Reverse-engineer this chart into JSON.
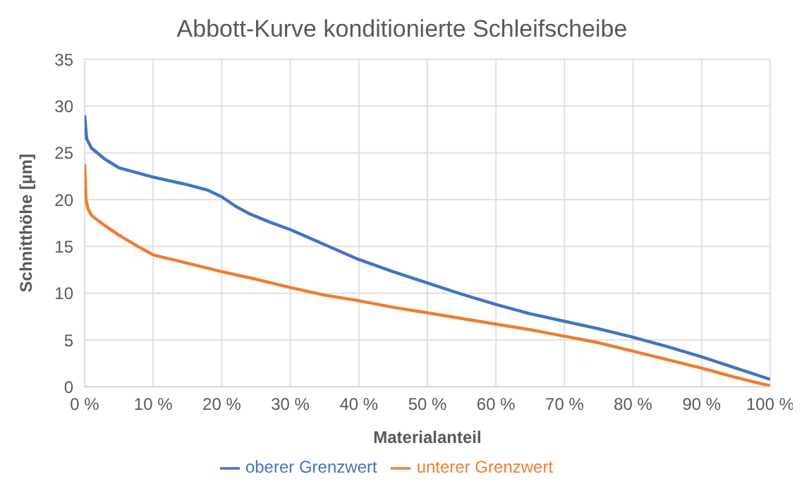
{
  "chart_data": {
    "type": "line",
    "title": "Abbott-Kurve konditionierte Schleifscheibe",
    "xlabel": "Materialanteil",
    "ylabel": "Schnitthöhe [µm]",
    "xlim": [
      0,
      100
    ],
    "xticks": [
      {
        "value": 0,
        "label": "0 %"
      },
      {
        "value": 10,
        "label": "10 %"
      },
      {
        "value": 20,
        "label": "20 %"
      },
      {
        "value": 30,
        "label": "30 %"
      },
      {
        "value": 40,
        "label": "40 %"
      },
      {
        "value": 50,
        "label": "50 %"
      },
      {
        "value": 60,
        "label": "60 %"
      },
      {
        "value": 70,
        "label": "70 %"
      },
      {
        "value": 80,
        "label": "80 %"
      },
      {
        "value": 90,
        "label": "90 %"
      },
      {
        "value": 100,
        "label": "100 %"
      }
    ],
    "ylim": [
      0,
      35
    ],
    "yticks": [
      0,
      5,
      10,
      15,
      20,
      25,
      30,
      35
    ],
    "grid": true,
    "legend": "bottom",
    "marker": "none",
    "line_style": "solid",
    "series": [
      {
        "name": "oberer Grenzwert",
        "color": "#4472c4",
        "x": [
          0,
          0.3,
          1,
          3,
          5,
          10,
          15,
          18,
          20,
          22,
          24,
          27,
          30,
          35,
          40,
          45,
          50,
          55,
          60,
          65,
          70,
          75,
          80,
          85,
          90,
          95,
          100
        ],
        "values": [
          29,
          26.5,
          25.5,
          24.3,
          23.4,
          22.4,
          21.6,
          21,
          20.3,
          19.3,
          18.5,
          17.6,
          16.8,
          15.2,
          13.6,
          12.3,
          11.1,
          9.9,
          8.8,
          7.8,
          7,
          6.2,
          5.3,
          4.3,
          3.2,
          2,
          0.8
        ]
      },
      {
        "name": "unterer Grenzwert",
        "color": "#ed7d31",
        "x": [
          0,
          0.2,
          0.5,
          1,
          3,
          5,
          8,
          10,
          15,
          20,
          25,
          30,
          35,
          40,
          45,
          50,
          55,
          60,
          65,
          70,
          75,
          80,
          85,
          90,
          95,
          100
        ],
        "values": [
          23.8,
          20,
          19,
          18.3,
          17.2,
          16.2,
          14.9,
          14.1,
          13.2,
          12.3,
          11.5,
          10.6,
          9.8,
          9.2,
          8.5,
          7.9,
          7.3,
          6.7,
          6.1,
          5.4,
          4.7,
          3.8,
          2.9,
          2,
          1,
          0.1
        ]
      }
    ]
  }
}
